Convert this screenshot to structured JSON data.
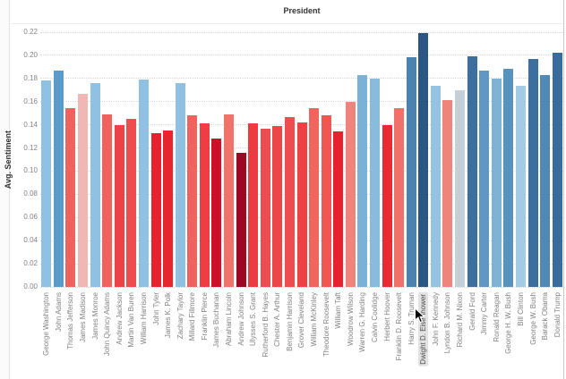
{
  "title": "President",
  "y_axis_label": "Avg. Sentiment",
  "hover": {
    "highlighted_category": "Dwight D. Eisenhower"
  },
  "colors": {
    "title_text": "#333333",
    "axis_text": "#828282",
    "grid": "#d8d8d8",
    "highlight_pill": "#e2e2e2",
    "pane_border": "#e2e2e2"
  },
  "chart_data": {
    "type": "bar",
    "title": "President",
    "xlabel": "President",
    "ylabel": "Avg. Sentiment",
    "ylim": [
      0,
      0.22
    ],
    "ytick_step": 0.02,
    "ytick_labels": [
      "0.00",
      "0.02",
      "0.04",
      "0.06",
      "0.08",
      "0.10",
      "0.12",
      "0.14",
      "0.16",
      "0.18",
      "0.20",
      "0.22"
    ],
    "grid": "horizontal-dotted",
    "legend_position": "none",
    "x_label_orientation": "vertical",
    "hovered_category": "Dwight D. Eisenhower",
    "categories": [
      "George Washington",
      "John Adams",
      "Thomas Jefferson",
      "James Madison",
      "James Monroe",
      "John Quincy Adams",
      "Andrew Jackson",
      "Martin Van Buren",
      "William Harrison",
      "John Tyler",
      "James K. Polk",
      "Zachary Taylor",
      "Millard Fillmore",
      "Franklin Pierce",
      "James Buchanan",
      "Abraham Lincoln",
      "Andrew Johnson",
      "Ulysses S. Grant",
      "Rutherford B. Hayes",
      "Chester A. Arthur",
      "Benjamin Harrison",
      "Grover Cleveland",
      "William McKinley",
      "Theodore Roosevelt",
      "William Taft",
      "Woodrow Wilson",
      "Warren G. Harding",
      "Calvin Coolidge",
      "Herbert Hoover",
      "Franklin D. Roosevelt",
      "Harry S. Truman",
      "Dwight D. Eisenhower",
      "John F. Kennedy",
      "Lyndon B. Johnson",
      "Richard M. Nixon",
      "Gerald Ford",
      "Jimmy Carter",
      "Ronald Reagan",
      "George H. W. Bush",
      "Bill Clinton",
      "George W. Bush",
      "Barack Obama",
      "Donald Trump"
    ],
    "values": [
      0.178,
      0.187,
      0.154,
      0.167,
      0.176,
      0.149,
      0.14,
      0.145,
      0.179,
      0.133,
      0.135,
      0.176,
      0.148,
      0.141,
      0.128,
      0.149,
      0.116,
      0.141,
      0.137,
      0.139,
      0.147,
      0.142,
      0.154,
      0.148,
      0.134,
      0.16,
      0.183,
      0.18,
      0.14,
      0.154,
      0.198,
      0.219,
      0.174,
      0.161,
      0.17,
      0.199,
      0.187,
      0.18,
      0.188,
      0.174,
      0.197,
      0.183,
      0.202
    ],
    "bar_colors": [
      "#8fc1e3",
      "#5b9bc9",
      "#f0625d",
      "#f0b8b5",
      "#90c0e2",
      "#f0625d",
      "#ee4146",
      "#ee4d4f",
      "#90c0e2",
      "#e8212e",
      "#e8242f",
      "#90c0e2",
      "#f0625d",
      "#ee3d43",
      "#ce0f27",
      "#f0736b",
      "#9c0824",
      "#ed3b42",
      "#ee4d4f",
      "#ee4549",
      "#ee4d4f",
      "#ee4146",
      "#f0665f",
      "#ef5852",
      "#e8212e",
      "#f0837b",
      "#79b1d7",
      "#88bbdc",
      "#ea2a33",
      "#f0706a",
      "#4c83ae",
      "#2a5783",
      "#95c3e2",
      "#f0847c",
      "#c5cfd7",
      "#3d6f9e",
      "#6097c4",
      "#7eb3d6",
      "#5892bf",
      "#a2cbe6",
      "#3d6f9e",
      "#5089b6",
      "#386c9c"
    ]
  }
}
